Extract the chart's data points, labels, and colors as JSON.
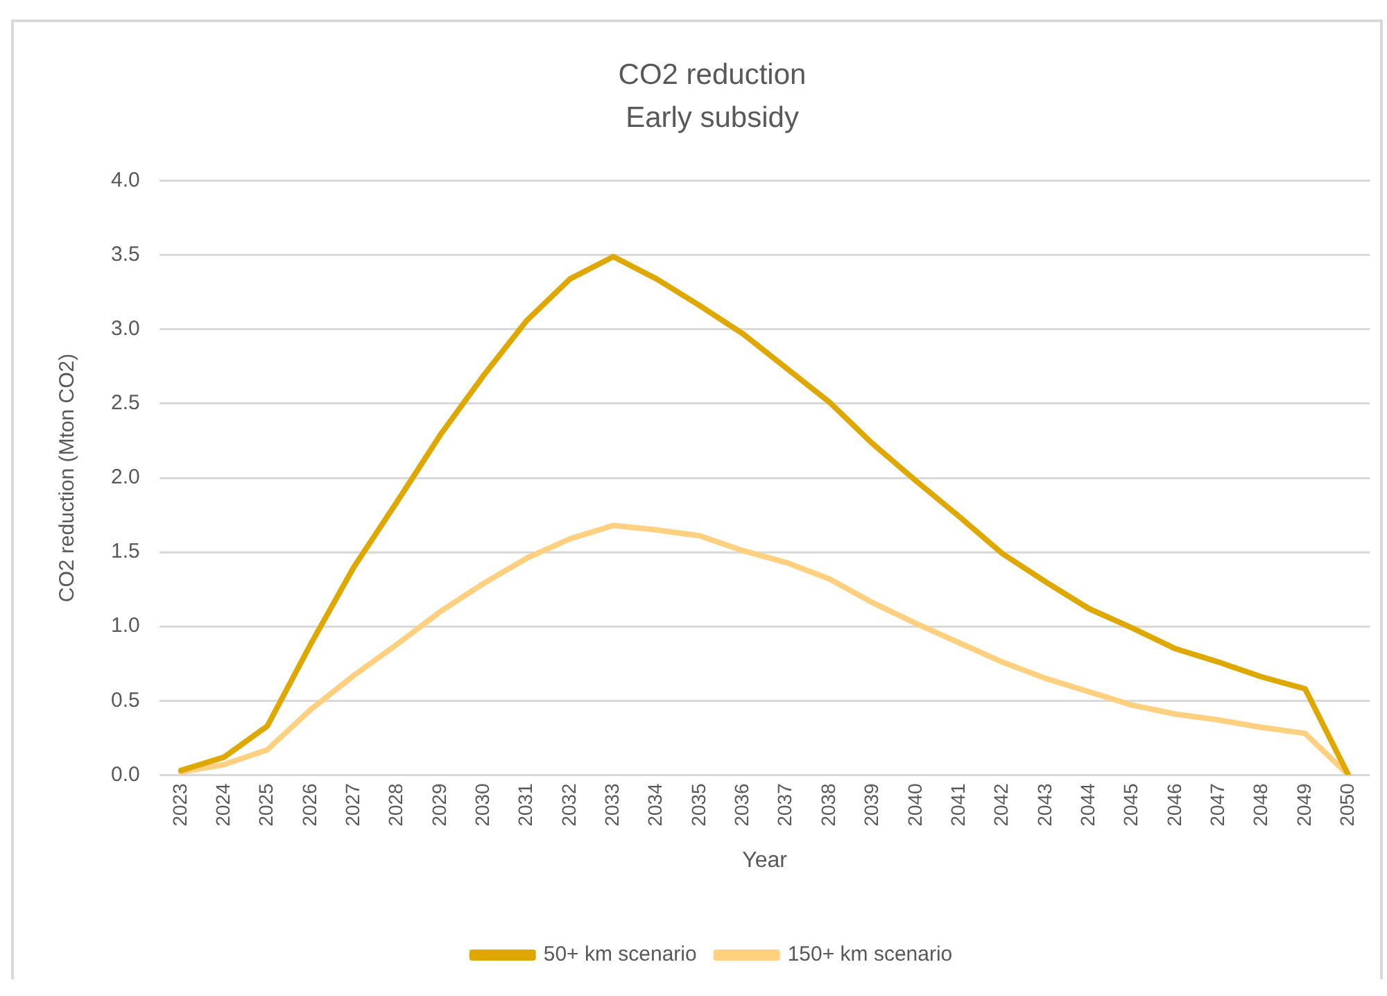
{
  "chart_data": {
    "type": "line",
    "title": "CO2 reduction",
    "subtitle": "Early subsidy",
    "xlabel": "Year",
    "ylabel": "CO2 reduction (Mton CO2)",
    "categories": [
      "2023",
      "2024",
      "2025",
      "2026",
      "2027",
      "2028",
      "2029",
      "2030",
      "2031",
      "2032",
      "2033",
      "2034",
      "2035",
      "2036",
      "2037",
      "2038",
      "2039",
      "2040",
      "2041",
      "2042",
      "2043",
      "2044",
      "2045",
      "2046",
      "2047",
      "2048",
      "2049",
      "2050"
    ],
    "series": [
      {
        "name": "50+ km scenario",
        "color": "#dfa800",
        "values": [
          0.03,
          0.12,
          0.33,
          0.88,
          1.4,
          1.84,
          2.29,
          2.69,
          3.06,
          3.34,
          3.49,
          3.34,
          3.16,
          2.97,
          2.74,
          2.51,
          2.23,
          1.98,
          1.74,
          1.49,
          1.3,
          1.12,
          0.99,
          0.85,
          0.76,
          0.66,
          0.58,
          0
        ]
      },
      {
        "name": "150+ km scenario",
        "color": "#ffd080",
        "values": [
          0.02,
          0.07,
          0.17,
          0.44,
          0.67,
          0.88,
          1.1,
          1.29,
          1.46,
          1.59,
          1.68,
          1.65,
          1.61,
          1.51,
          1.43,
          1.32,
          1.16,
          1.02,
          0.89,
          0.76,
          0.65,
          0.56,
          0.47,
          0.41,
          0.37,
          0.32,
          0.28,
          0
        ]
      }
    ],
    "ylim": [
      0,
      4
    ],
    "yticks": [
      {
        "value": 0,
        "label": "0.0"
      },
      0.5,
      {
        "value": 1,
        "label": "1.0"
      },
      1.5,
      {
        "value": 2,
        "label": "2.0"
      },
      2.5,
      {
        "value": 3,
        "label": "3.0"
      },
      3.5,
      {
        "value": 4,
        "label": "4.0"
      }
    ],
    "grid": "y",
    "legend": "bottom",
    "marker": "none",
    "line_style": "solid"
  }
}
